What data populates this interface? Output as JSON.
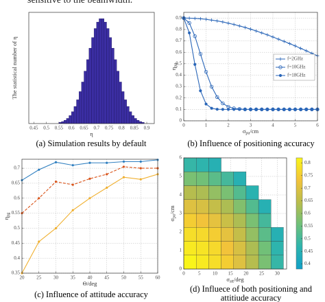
{
  "header_text": "sensitive to the beamwidth.",
  "chart_data": [
    {
      "type": "histogram",
      "caption": [
        "(a) Simulation results by default"
      ],
      "xlabel": [
        {
          "text": "η"
        }
      ],
      "ylabel": [
        {
          "text": "The statistical number of η"
        }
      ],
      "bins": [
        0.55,
        0.56,
        0.57,
        0.58,
        0.59,
        0.6,
        0.61,
        0.62,
        0.63,
        0.64,
        0.65,
        0.66,
        0.67,
        0.68,
        0.69,
        0.7,
        0.71,
        0.72,
        0.73,
        0.74,
        0.75,
        0.76,
        0.77,
        0.78,
        0.79,
        0.8,
        0.81,
        0.82,
        0.83,
        0.84,
        0.85,
        0.86,
        0.87,
        0.88,
        0.89
      ],
      "values": [
        10,
        17,
        28,
        44,
        68,
        101,
        146,
        203,
        273,
        355,
        448,
        546,
        644,
        735,
        812,
        867,
        896,
        896,
        867,
        812,
        735,
        644,
        546,
        448,
        355,
        273,
        203,
        146,
        101,
        68,
        44,
        28,
        17,
        10
      ],
      "color": "#3b2ea3",
      "xlim": [
        0.43,
        0.93
      ],
      "xticks": [
        0.45,
        0.5,
        0.55,
        0.6,
        0.65,
        0.7,
        0.75,
        0.8,
        0.85,
        0.9
      ],
      "ylim": [
        0,
        950
      ],
      "grid": false
    },
    {
      "type": "line",
      "caption": [
        "(b) Influence of positioning accuracy"
      ],
      "xlabel": [
        {
          "text": "σ"
        },
        {
          "text": "pu",
          "sub": true
        },
        {
          "text": "/cm"
        }
      ],
      "ylabel": [
        {
          "text": "η"
        },
        {
          "text": "pg",
          "sub": true
        }
      ],
      "x": [
        0,
        0.25,
        0.5,
        0.75,
        1,
        1.25,
        1.5,
        1.75,
        2,
        2.25,
        2.5,
        2.75,
        3,
        3.25,
        3.5,
        3.75,
        4,
        4.25,
        4.5,
        4.75,
        5,
        5.25,
        5.5,
        5.75,
        6
      ],
      "series": [
        {
          "name": "f=2GHz",
          "color": "#2a66b8",
          "marker": "+",
          "linestyle": "solid",
          "values": [
            0.9,
            0.899,
            0.897,
            0.894,
            0.889,
            0.882,
            0.875,
            0.866,
            0.855,
            0.844,
            0.831,
            0.818,
            0.803,
            0.787,
            0.77,
            0.753,
            0.734,
            0.715,
            0.696,
            0.676,
            0.656,
            0.634,
            0.613,
            0.591,
            0.57
          ]
        },
        {
          "name": "f=10GHz",
          "color": "#2a66b8",
          "marker": "o",
          "linestyle": "solid",
          "values": [
            0.9,
            0.857,
            0.741,
            0.585,
            0.429,
            0.299,
            0.208,
            0.153,
            0.123,
            0.109,
            0.104,
            0.1,
            0.1,
            0.1,
            0.1,
            0.1,
            0.1,
            0.1,
            0.1,
            0.1,
            0.1,
            0.1,
            0.1,
            0.1,
            0.1
          ]
        },
        {
          "name": "f=18GHz",
          "color": "#2a66b8",
          "marker": "*",
          "linestyle": "solid",
          "values": [
            0.9,
            0.77,
            0.494,
            0.263,
            0.147,
            0.11,
            0.101,
            0.1,
            0.1,
            0.1,
            0.1,
            0.1,
            0.1,
            0.1,
            0.1,
            0.1,
            0.1,
            0.1,
            0.1,
            0.1,
            0.1,
            0.1,
            0.1,
            0.1,
            0.1
          ]
        }
      ],
      "xlim": [
        0,
        6
      ],
      "xticks": [
        0,
        1,
        2,
        3,
        4,
        5,
        6
      ],
      "ylim": [
        0,
        0.95
      ],
      "yticks": [
        0,
        0.1,
        0.2,
        0.3,
        0.4,
        0.5,
        0.6,
        0.7,
        0.8,
        0.9
      ],
      "grid": true,
      "legend": "center right"
    },
    {
      "type": "line",
      "caption": [
        "(c) Influence of attitude accuracy"
      ],
      "xlabel": [
        {
          "text": "Θ/deg"
        }
      ],
      "ylabel": [
        {
          "text": "η"
        },
        {
          "text": "pg",
          "sub": true
        }
      ],
      "x": [
        20,
        25,
        30,
        35,
        40,
        45,
        50,
        55,
        60
      ],
      "series": [
        {
          "color": "#2f7fc0",
          "marker": ".",
          "linestyle": "solid",
          "values": [
            0.66,
            0.695,
            0.72,
            0.71,
            0.718,
            0.718,
            0.722,
            0.722,
            0.728
          ]
        },
        {
          "color": "#d9541a",
          "marker": ".",
          "linestyle": "dashed",
          "values": [
            0.55,
            0.6,
            0.655,
            0.645,
            0.665,
            0.68,
            0.705,
            0.7,
            0.7
          ]
        },
        {
          "color": "#f0b030",
          "marker": ".",
          "linestyle": "solid",
          "values": [
            0.35,
            0.455,
            0.5,
            0.56,
            0.6,
            0.635,
            0.67,
            0.663,
            0.68
          ]
        }
      ],
      "xlim": [
        20,
        60
      ],
      "xticks": [
        20,
        25,
        30,
        35,
        40,
        45,
        50,
        55,
        60
      ],
      "ylim": [
        0.35,
        0.73
      ],
      "yticks": [
        0.35,
        0.4,
        0.45,
        0.5,
        0.55,
        0.6,
        0.65,
        0.7
      ],
      "grid": true
    },
    {
      "type": "heatmap",
      "caption": [
        "(d) Influece of both positioning and",
        "attitiude accuracy"
      ],
      "xlabel": [
        {
          "text": "σ"
        },
        {
          "text": "att",
          "sub": true
        },
        {
          "text": "/deg"
        }
      ],
      "ylabel": [
        {
          "text": "σ"
        },
        {
          "text": "pu",
          "sub": true
        },
        {
          "text": "/cm"
        }
      ],
      "x_bins": [
        0,
        4,
        8,
        12,
        16,
        20,
        24,
        28,
        32
      ],
      "y_bins": [
        0,
        0.75,
        1.5,
        2.25,
        3,
        3.75,
        4.5,
        5.25,
        6
      ],
      "z": [
        [
          0.82,
          0.8,
          0.78,
          0.75,
          0.7,
          0.64,
          0.57,
          0.48
        ],
        [
          0.8,
          0.79,
          0.77,
          0.73,
          0.69,
          0.63,
          0.56,
          0.47
        ],
        [
          0.78,
          0.77,
          0.75,
          0.71,
          0.66,
          0.6,
          0.53,
          0.45
        ],
        [
          0.75,
          0.73,
          0.71,
          0.67,
          0.63,
          0.57,
          0.5,
          null
        ],
        [
          0.7,
          0.69,
          0.66,
          0.63,
          0.58,
          0.52,
          0.45,
          null
        ],
        [
          0.64,
          0.63,
          0.6,
          0.57,
          0.52,
          0.46,
          null,
          null
        ],
        [
          0.57,
          0.56,
          0.53,
          0.5,
          0.45,
          null,
          null,
          null
        ],
        [
          0.48,
          0.47,
          0.45,
          null,
          null,
          null,
          null,
          null
        ]
      ],
      "xlim": [
        0,
        33
      ],
      "xticks": [
        0,
        5,
        10,
        15,
        20,
        25,
        30
      ],
      "ylim": [
        0,
        6
      ],
      "yticks": [
        0,
        1,
        2,
        3,
        4,
        5,
        6
      ],
      "clim": [
        0.38,
        0.82
      ],
      "cticks": [
        0.4,
        0.45,
        0.5,
        0.55,
        0.6,
        0.65,
        0.7,
        0.75,
        0.8
      ],
      "colormap": [
        "#11a0c8",
        "#2db4ae",
        "#6ec07a",
        "#b9bd4c",
        "#f3c33a",
        "#f9f51a"
      ],
      "grid": true
    }
  ]
}
